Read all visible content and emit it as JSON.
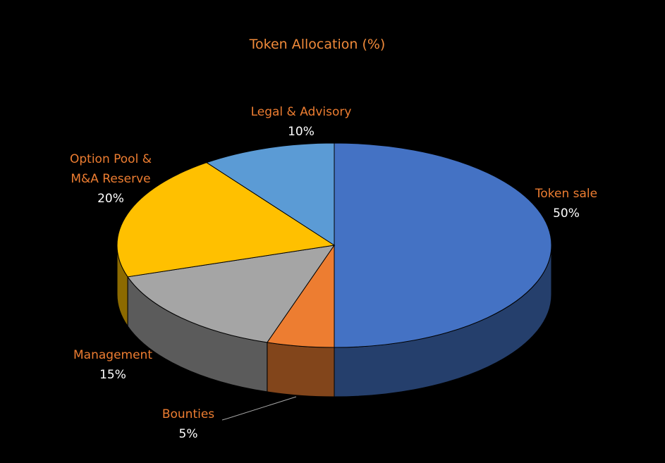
{
  "chart_data": {
    "type": "pie3d",
    "title": "Token Allocation (%)",
    "categories": [
      "Token sale",
      "Bounties",
      "Management",
      "Option Pool & M&A Reserve",
      "Legal & Advisory"
    ],
    "values": [
      50,
      5,
      15,
      20,
      10
    ],
    "value_labels": [
      "50%",
      "5%",
      "15%",
      "20%",
      "10%"
    ],
    "colors": [
      "#4472c4",
      "#ed7d31",
      "#a5a5a5",
      "#ffc000",
      "#5b9bd5"
    ]
  }
}
